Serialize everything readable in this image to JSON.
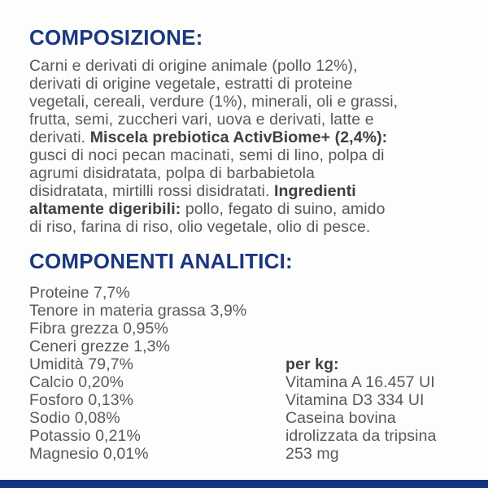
{
  "theme": {
    "accent_blue": "#1c3782",
    "footer_bar_blue": "#14357e",
    "body_gray": "#59595b",
    "bold_dark_gray": "#3f4042",
    "background": "#fdfdfb"
  },
  "composition": {
    "title": "COMPOSIZIONE:",
    "lines": [
      [
        {
          "t": "Carni e derivati di origine animale (pollo 12%),",
          "b": false
        }
      ],
      [
        {
          "t": "derivati di origine vegetale, estratti di proteine",
          "b": false
        }
      ],
      [
        {
          "t": "vegetali, cereali, verdure (1%), minerali, oli e grassi,",
          "b": false
        }
      ],
      [
        {
          "t": "frutta, semi, zuccheri vari, uova e derivati, latte e",
          "b": false
        }
      ],
      [
        {
          "t": "derivati. ",
          "b": false
        },
        {
          "t": "Miscela prebiotica ActivBiome+ (2,4%):",
          "b": true
        }
      ],
      [
        {
          "t": "gusci di noci pecan macinati, semi di lino, polpa di",
          "b": false
        }
      ],
      [
        {
          "t": "agrumi disidratata, polpa di barbabietola",
          "b": false
        }
      ],
      [
        {
          "t": "disidratata, mirtilli rossi disidratati. ",
          "b": false
        },
        {
          "t": "Ingredienti",
          "b": true
        }
      ],
      [
        {
          "t": "altamente digeribili:",
          "b": true
        },
        {
          "t": " pollo, fegato di suino, amido",
          "b": false
        }
      ],
      [
        {
          "t": "di riso, farina di riso, olio vegetale, olio di pesce.",
          "b": false
        }
      ]
    ]
  },
  "analytics": {
    "title": "COMPONENTI ANALITICI:",
    "left_items": [
      "Proteine 7,7%",
      "Tenore in materia grassa 3,9%",
      "Fibra grezza 0,95%",
      "Ceneri grezze 1,3%",
      "Umidità 79,7%",
      "Calcio 0,20%",
      "Fosforo 0,13%",
      "Sodio 0,08%",
      "Potassio 0,21%",
      "Magnesio 0,01%"
    ],
    "right_heading": "per kg:",
    "right_items": [
      "Vitamina A 16.457 UI",
      "Vitamina D3 334 UI",
      "Caseina bovina",
      "idrolizzata da tripsina",
      "253 mg"
    ]
  }
}
